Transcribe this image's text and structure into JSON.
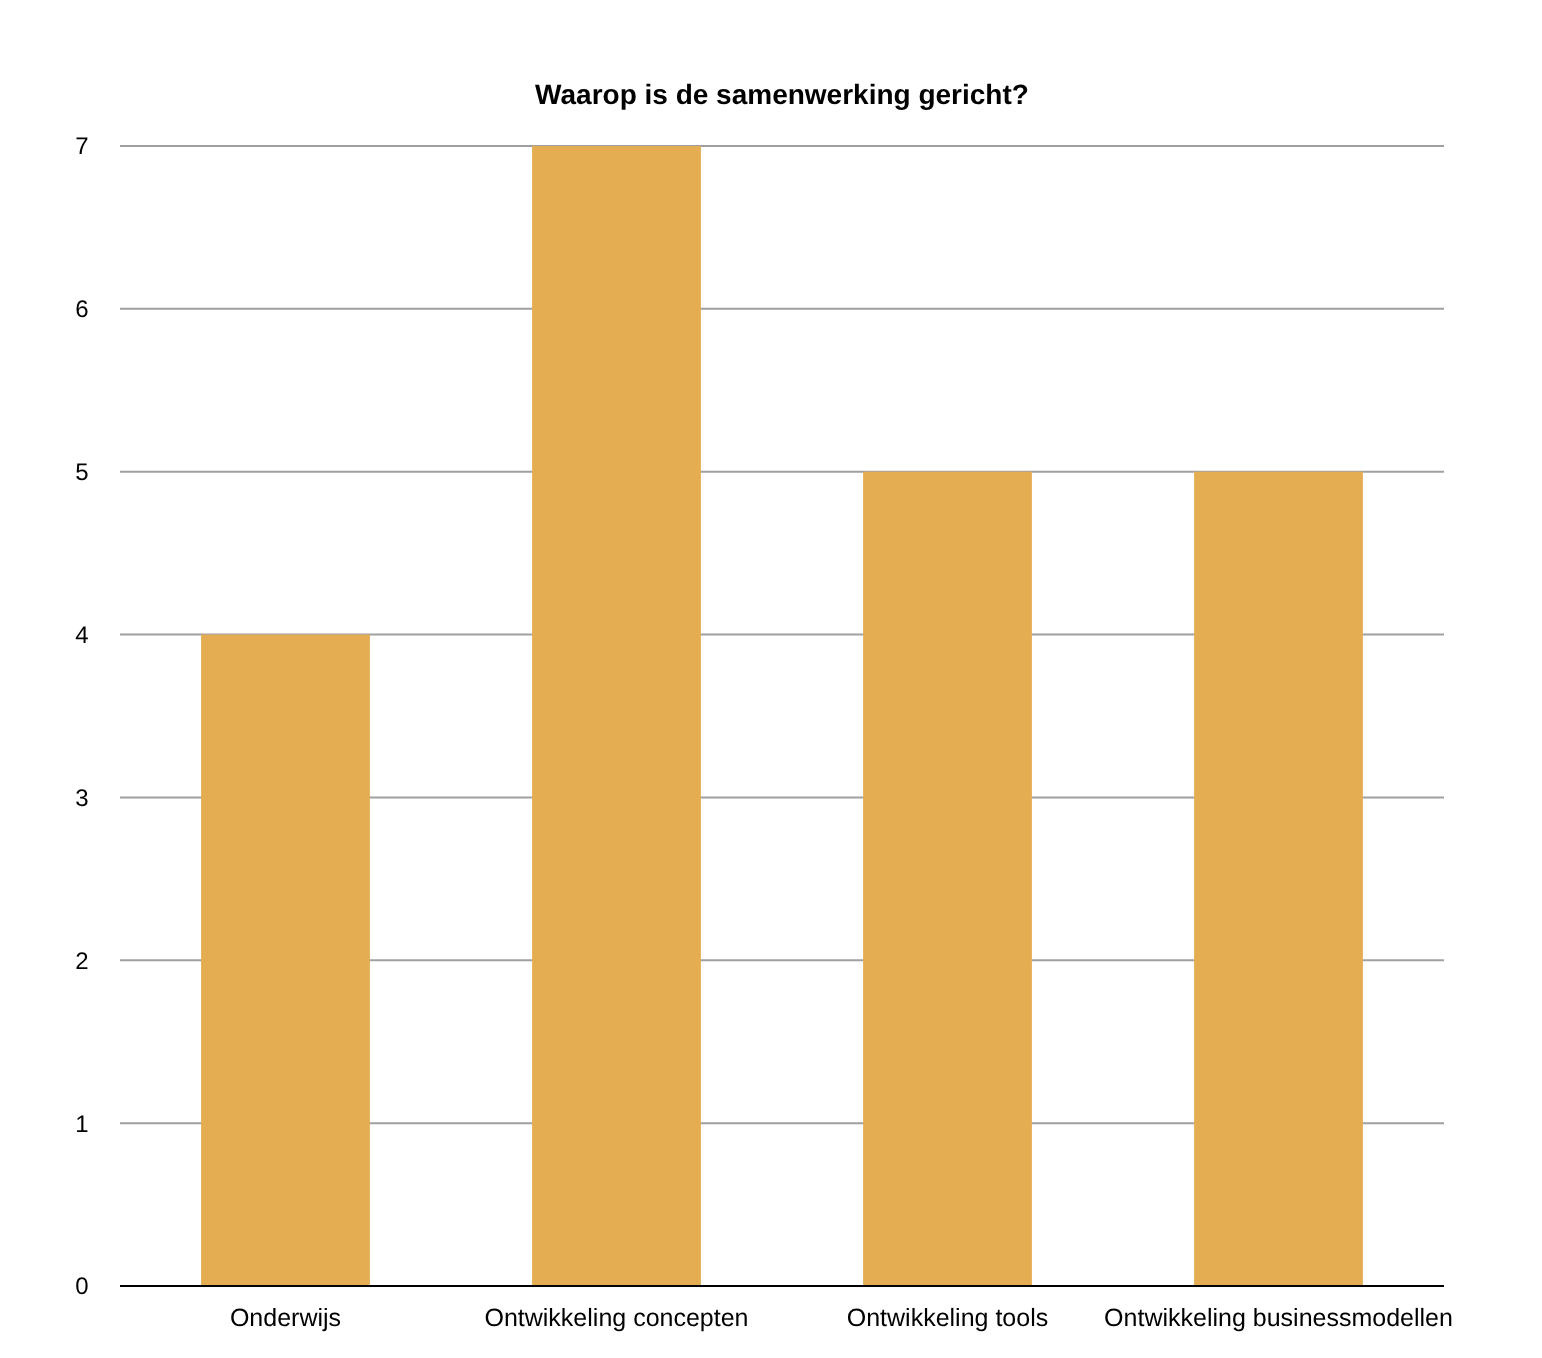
{
  "chart_data": {
    "type": "bar",
    "title": "Waarop is de samenwerking gericht?",
    "categories": [
      "Onderwijs",
      "Ontwikkeling concepten",
      "Ontwikkeling tools",
      "Ontwikkeling businessmodellen"
    ],
    "values": [
      4,
      7,
      5,
      5
    ],
    "color": "#e5ad52",
    "ylim": [
      0,
      7
    ],
    "yticks": [
      0,
      1,
      2,
      3,
      4,
      5,
      6,
      7
    ],
    "grid": "y"
  }
}
